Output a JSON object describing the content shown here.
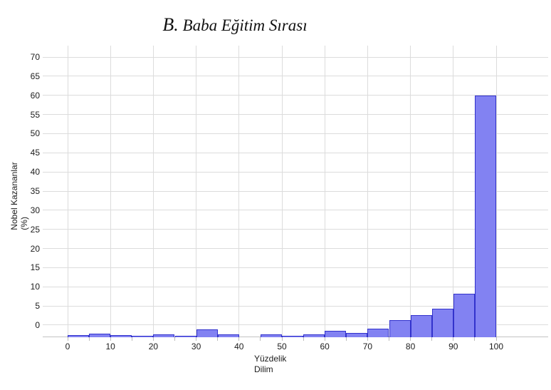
{
  "chart_data": {
    "type": "bar",
    "subtype": "histogram",
    "title": "B. Baba Eğitim Sırası",
    "title_prefix": "B.",
    "title_rest": " Baba Eğitim Sırası",
    "ylabel": "Nobel Kazananlar (%)",
    "ylabel_lines": [
      "Nobel Kazananlar",
      "(%)"
    ],
    "xlabel": "Yüzdelik Dilim",
    "xlabel_lines": [
      "Yüzdelik",
      "Dilim"
    ],
    "y_ticks": [
      0,
      5,
      10,
      15,
      20,
      25,
      30,
      35,
      40,
      45,
      50,
      55,
      60,
      65,
      70
    ],
    "x_ticks": [
      0,
      10,
      20,
      30,
      40,
      50,
      60,
      70,
      80,
      90,
      100
    ],
    "x_minor_tick_step": 5,
    "ylim": [
      -3,
      73
    ],
    "xlim": [
      -3,
      112
    ],
    "grid": true,
    "legend": false,
    "baseline": -3,
    "bin_width": 5,
    "bars": [
      {
        "range": "0-5",
        "x0": 0,
        "x1": 5,
        "top": -2.7,
        "height_pct": 0.3
      },
      {
        "range": "5-10",
        "x0": 5,
        "x1": 10,
        "top": -2.2,
        "height_pct": 0.8
      },
      {
        "range": "10-15",
        "x0": 10,
        "x1": 15,
        "top": -2.6,
        "height_pct": 0.4
      },
      {
        "range": "15-20",
        "x0": 15,
        "x1": 20,
        "top": -2.9,
        "height_pct": 0.1
      },
      {
        "range": "20-25",
        "x0": 20,
        "x1": 25,
        "top": -2.5,
        "height_pct": 0.5
      },
      {
        "range": "25-30",
        "x0": 25,
        "x1": 30,
        "top": -2.95,
        "height_pct": 0.05
      },
      {
        "range": "30-35",
        "x0": 30,
        "x1": 35,
        "top": -1.1,
        "height_pct": 1.9
      },
      {
        "range": "35-40",
        "x0": 35,
        "x1": 40,
        "top": -2.4,
        "height_pct": 0.6
      },
      {
        "range": "40-45",
        "x0": 40,
        "x1": 45,
        "top": null,
        "height_pct": 0
      },
      {
        "range": "45-50",
        "x0": 45,
        "x1": 50,
        "top": -2.5,
        "height_pct": 0.5
      },
      {
        "range": "50-55",
        "x0": 50,
        "x1": 55,
        "top": -2.85,
        "height_pct": 0.15
      },
      {
        "range": "55-60",
        "x0": 55,
        "x1": 60,
        "top": -2.4,
        "height_pct": 0.6
      },
      {
        "range": "60-65",
        "x0": 60,
        "x1": 65,
        "top": -1.6,
        "height_pct": 1.4
      },
      {
        "range": "65-70",
        "x0": 65,
        "x1": 70,
        "top": -2.1,
        "height_pct": 0.9
      },
      {
        "range": "70-75",
        "x0": 70,
        "x1": 75,
        "top": -0.9,
        "height_pct": 2.1
      },
      {
        "range": "75-80",
        "x0": 75,
        "x1": 80,
        "top": 1.3,
        "height_pct": 4.3
      },
      {
        "range": "80-85",
        "x0": 80,
        "x1": 85,
        "top": 2.5,
        "height_pct": 5.5
      },
      {
        "range": "85-90",
        "x0": 85,
        "x1": 90,
        "top": 4.3,
        "height_pct": 7.3
      },
      {
        "range": "90-95",
        "x0": 90,
        "x1": 95,
        "top": 8.1,
        "height_pct": 11.1
      },
      {
        "range": "95-100",
        "x0": 95,
        "x1": 100,
        "top": 60,
        "height_pct": 63
      }
    ],
    "colors": {
      "bar_fill": "#8282f2",
      "bar_border": "#3232cc",
      "gridline": "#dcdcdc",
      "axis_line": "#c2c2c2",
      "text": "#1c1c1c",
      "background": "#ffffff"
    }
  }
}
